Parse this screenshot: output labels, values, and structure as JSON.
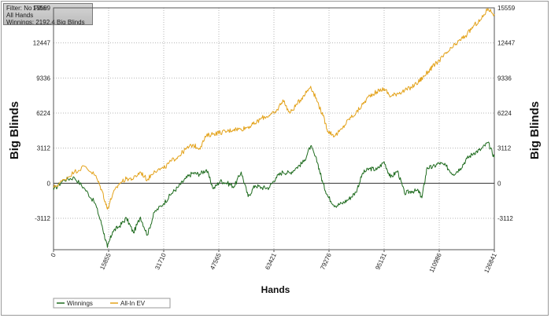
{
  "info": {
    "filter": "Filter: No Filter",
    "hands": "All Hands",
    "winnings": "Winnings: 2192.4 Big Blinds"
  },
  "chart_data": {
    "type": "line",
    "title": "",
    "xlabel": "Hands",
    "ylabel_left": "Big Blinds",
    "ylabel_right": "Big Blinds",
    "xlim": [
      0,
      126841
    ],
    "ylim": [
      -5900,
      15559
    ],
    "x_ticks": [
      0,
      15855,
      31710,
      47565,
      63421,
      79276,
      95131,
      110986,
      126841
    ],
    "y_ticks": [
      -3112,
      0,
      3112,
      6224,
      9336,
      12447,
      15559
    ],
    "grid": true,
    "legend_position": "bottom-left",
    "series": [
      {
        "name": "Winnings",
        "color": "#1e6b1e",
        "x": [
          0,
          3000,
          6000,
          9000,
          12000,
          14000,
          15500,
          17000,
          19000,
          21000,
          23000,
          25000,
          27000,
          29000,
          31700,
          34000,
          36000,
          38000,
          40000,
          42000,
          44000,
          46000,
          48000,
          50000,
          52000,
          54000,
          56000,
          58000,
          60000,
          62000,
          64000,
          66000,
          68000,
          70000,
          72000,
          74000,
          76000,
          77500,
          79000,
          81000,
          83000,
          85000,
          87000,
          89000,
          91000,
          93000,
          95131,
          97000,
          99000,
          101000,
          103000,
          105000,
          106000,
          107500,
          109000,
          111000,
          113000,
          115000,
          117000,
          119000,
          121000,
          123000,
          125000,
          126841
        ],
        "y": [
          -600,
          300,
          500,
          -500,
          -1800,
          -3800,
          -5700,
          -4300,
          -3800,
          -3100,
          -4400,
          -3000,
          -4600,
          -2600,
          -1800,
          -900,
          -300,
          400,
          900,
          800,
          1200,
          -500,
          200,
          0,
          -300,
          1000,
          -1200,
          -200,
          -400,
          -400,
          500,
          1000,
          900,
          1400,
          1900,
          3300,
          1800,
          0,
          -1200,
          -2000,
          -1800,
          -1400,
          -800,
          900,
          1300,
          1200,
          1900,
          500,
          1100,
          -900,
          -700,
          -700,
          -1300,
          1400,
          1400,
          1800,
          1500,
          800,
          1300,
          2200,
          2700,
          3000,
          3600,
          2300
        ]
      },
      {
        "name": "All-In EV",
        "color": "#e3a21a",
        "x": [
          0,
          3000,
          6000,
          9000,
          12000,
          14000,
          15500,
          17000,
          19000,
          21000,
          23000,
          25000,
          27000,
          29000,
          31700,
          34000,
          36000,
          38000,
          40000,
          42000,
          44000,
          46000,
          48000,
          50000,
          52000,
          54000,
          56000,
          58000,
          60000,
          62000,
          64000,
          66000,
          68000,
          70000,
          72000,
          74000,
          76000,
          77500,
          79000,
          81000,
          83000,
          85000,
          87000,
          89000,
          91000,
          93000,
          95131,
          97000,
          99000,
          101000,
          103000,
          105000,
          106000,
          107500,
          109000,
          111000,
          113000,
          115000,
          117000,
          119000,
          121000,
          123000,
          125000,
          126841
        ],
        "y": [
          -400,
          300,
          1000,
          1500,
          700,
          -700,
          -2300,
          -1000,
          0,
          400,
          400,
          1000,
          300,
          1100,
          1300,
          2000,
          2400,
          3000,
          3400,
          3100,
          4200,
          4400,
          4500,
          4600,
          4800,
          4800,
          5000,
          5300,
          5800,
          6000,
          6300,
          7400,
          6200,
          7000,
          7800,
          8600,
          7200,
          6000,
          4600,
          4200,
          4800,
          5700,
          6200,
          7000,
          7800,
          8100,
          8400,
          7700,
          8000,
          8200,
          8500,
          9000,
          9300,
          9800,
          10300,
          10900,
          11500,
          12100,
          12700,
          13200,
          14000,
          14500,
          15500,
          15000
        ]
      }
    ]
  }
}
